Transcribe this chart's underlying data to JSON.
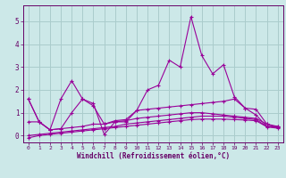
{
  "x": [
    0,
    1,
    2,
    3,
    4,
    5,
    6,
    7,
    8,
    9,
    10,
    11,
    12,
    13,
    14,
    15,
    16,
    17,
    18,
    19,
    20,
    21,
    22,
    23
  ],
  "main_line": [
    1.6,
    0.6,
    0.25,
    1.6,
    2.4,
    1.6,
    1.4,
    0.05,
    0.6,
    0.6,
    1.1,
    2.0,
    2.2,
    3.3,
    3.0,
    5.2,
    3.5,
    2.7,
    3.1,
    1.7,
    1.2,
    0.9,
    0.4,
    0.4
  ],
  "trend1": [
    1.6,
    0.6,
    0.25,
    0.3,
    1.0,
    1.6,
    1.3,
    0.5,
    0.65,
    0.7,
    1.1,
    1.15,
    1.2,
    1.25,
    1.3,
    1.35,
    1.4,
    1.45,
    1.5,
    1.6,
    1.2,
    1.15,
    0.5,
    0.35
  ],
  "trend2": [
    0.6,
    0.6,
    0.25,
    0.3,
    0.35,
    0.4,
    0.5,
    0.5,
    0.6,
    0.65,
    0.75,
    0.8,
    0.85,
    0.9,
    0.95,
    1.0,
    1.0,
    0.95,
    0.9,
    0.85,
    0.8,
    0.75,
    0.5,
    0.4
  ],
  "trend3": [
    0.0,
    0.05,
    0.1,
    0.15,
    0.2,
    0.25,
    0.3,
    0.35,
    0.4,
    0.5,
    0.55,
    0.6,
    0.65,
    0.7,
    0.75,
    0.8,
    0.85,
    0.85,
    0.85,
    0.8,
    0.75,
    0.7,
    0.4,
    0.35
  ],
  "trend4": [
    -0.1,
    0.0,
    0.05,
    0.1,
    0.15,
    0.2,
    0.25,
    0.3,
    0.35,
    0.4,
    0.45,
    0.5,
    0.55,
    0.6,
    0.65,
    0.7,
    0.72,
    0.72,
    0.72,
    0.7,
    0.68,
    0.65,
    0.38,
    0.32
  ],
  "line_color": "#990099",
  "bg_color": "#cce8e8",
  "grid_color": "#aacccc",
  "axis_color": "#660066",
  "xlabel": "Windchill (Refroidissement éolien,°C)",
  "yticks": [
    0,
    1,
    2,
    3,
    4,
    5
  ],
  "xticks": [
    0,
    1,
    2,
    3,
    4,
    5,
    6,
    7,
    8,
    9,
    10,
    11,
    12,
    13,
    14,
    15,
    16,
    17,
    18,
    19,
    20,
    21,
    22,
    23
  ],
  "ylim": [
    -0.3,
    5.7
  ],
  "xlim": [
    -0.5,
    23.5
  ]
}
